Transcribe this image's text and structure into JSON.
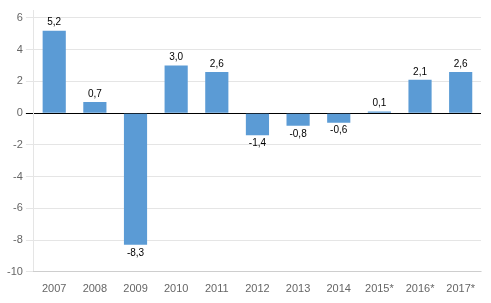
{
  "chart_data": {
    "type": "bar",
    "categories": [
      "2007",
      "2008",
      "2009",
      "2010",
      "2011",
      "2012",
      "2013",
      "2014",
      "2015*",
      "2016*",
      "2017*"
    ],
    "values": [
      5.2,
      0.7,
      -8.3,
      3.0,
      2.6,
      -1.4,
      -0.8,
      -0.6,
      0.1,
      2.1,
      2.6
    ],
    "value_labels": [
      "5,2",
      "0,7",
      "-8,3",
      "3,0",
      "2,6",
      "-1,4",
      "-0,8",
      "-0,6",
      "0,1",
      "2,1",
      "2,6"
    ],
    "color": "#5B9BD5",
    "ylim": [
      -10,
      6.5
    ],
    "yticks": [
      -10,
      -8,
      -6,
      -4,
      -2,
      0,
      2,
      4,
      6
    ],
    "grid": true,
    "data_labels": true
  }
}
